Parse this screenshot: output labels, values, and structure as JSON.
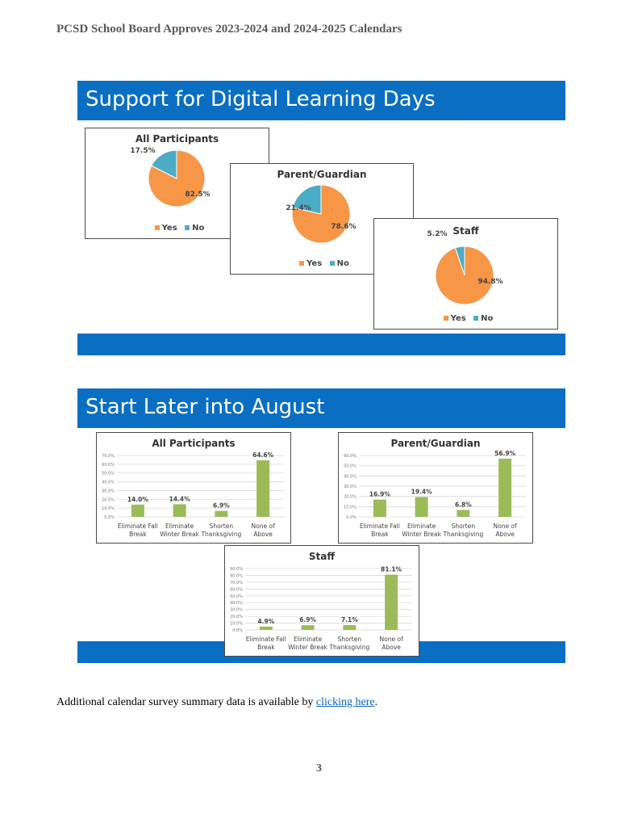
{
  "header": {
    "title": "PCSD School Board Approves 2023-2024 and 2024-2025 Calendars"
  },
  "section1": {
    "title": "Support for Digital Learning Days"
  },
  "section2": {
    "title": "Start Later into August"
  },
  "legend": {
    "yes": "Yes",
    "no": "No"
  },
  "colors": {
    "band": "#0a6fc2",
    "yes": "#f79646",
    "no": "#4bacc6",
    "bar": "#9bbb59"
  },
  "chart_data": [
    {
      "type": "pie",
      "title": "All Participants",
      "categories": [
        "Yes",
        "No"
      ],
      "values": [
        82.5,
        17.5
      ],
      "labels": [
        "82.5%",
        "17.5%"
      ]
    },
    {
      "type": "pie",
      "title": "Parent/Guardian",
      "categories": [
        "Yes",
        "No"
      ],
      "values": [
        78.6,
        21.4
      ],
      "labels": [
        "78.6%",
        "21.4%"
      ]
    },
    {
      "type": "pie",
      "title": "Staff",
      "categories": [
        "Yes",
        "No"
      ],
      "values": [
        94.8,
        5.2
      ],
      "labels": [
        "94.8%",
        "5.2%"
      ]
    },
    {
      "type": "bar",
      "title": "All Participants",
      "categories": [
        "Eliminate Fall|Break",
        "Eliminate|Winter Break",
        "Shorten|Thanksgiving",
        "None of|Above"
      ],
      "values": [
        14.0,
        14.4,
        6.9,
        64.6
      ],
      "labels": [
        "14.0%",
        "14.4%",
        "6.9%",
        "64.6%"
      ],
      "ylim": [
        0,
        70
      ],
      "yticks": [
        "0.0%",
        "10.0%",
        "20.0%",
        "30.0%",
        "40.0%",
        "50.0%",
        "60.0%",
        "70.0%"
      ]
    },
    {
      "type": "bar",
      "title": "Parent/Guardian",
      "categories": [
        "Eliminate Fall|Break",
        "Eliminate|Winter Break",
        "Shorten|Thanksgiving",
        "None of|Above"
      ],
      "values": [
        16.9,
        19.4,
        6.8,
        56.9
      ],
      "labels": [
        "16.9%",
        "19.4%",
        "6.8%",
        "56.9%"
      ],
      "ylim": [
        0,
        60
      ],
      "yticks": [
        "0.0%",
        "10.0%",
        "20.0%",
        "30.0%",
        "40.0%",
        "50.0%",
        "60.0%"
      ]
    },
    {
      "type": "bar",
      "title": "Staff",
      "categories": [
        "Eliminate Fall|Break",
        "Eliminate|Winter Break",
        "Shorten|Thanksgiving",
        "None of|Above"
      ],
      "values": [
        4.9,
        6.9,
        7.1,
        81.1
      ],
      "labels": [
        "4.9%",
        "6.9%",
        "7.1%",
        "81.1%"
      ],
      "ylim": [
        0,
        90
      ],
      "yticks": [
        "0.0%",
        "10.0%",
        "20.0%",
        "30.0%",
        "40.0%",
        "50.0%",
        "60.0%",
        "70.0%",
        "80.0%",
        "90.0%"
      ]
    }
  ],
  "footer": {
    "text_before": "Additional calendar survey summary data is available by ",
    "link": "clicking here",
    "text_after": "."
  },
  "page_number": "3"
}
